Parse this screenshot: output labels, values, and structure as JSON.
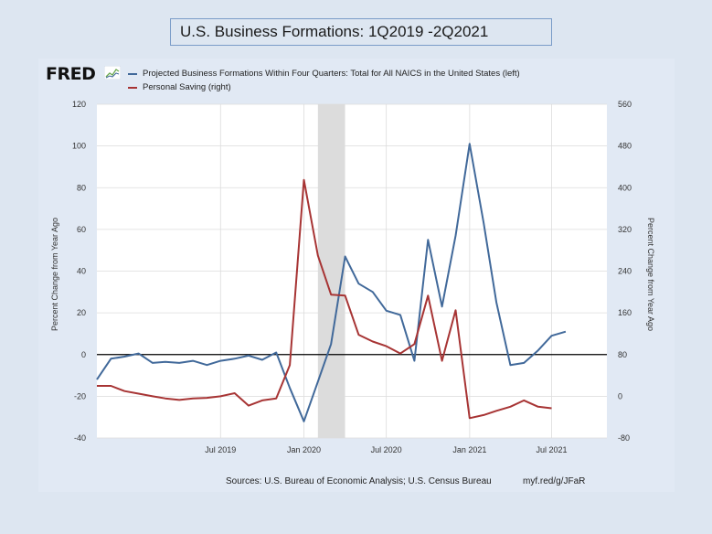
{
  "page_title": "U.S. Business Formations: 1Q2019  -2Q2021",
  "logo_text": "FRED",
  "source_text": "Sources: U.S. Bureau of Economic Analysis; U.S. Census Bureau",
  "url_text": "myf.red/g/JFaR",
  "colors": {
    "series_left": "#41699a",
    "series_right": "#a73434",
    "recession": "#dcdcdc",
    "zero_line": "#000000"
  },
  "chart_data": {
    "type": "line",
    "title": "",
    "ylabel_left": "Percent Change from Year Ago",
    "ylabel_right": "Percent Change from Year Ago",
    "ylim_left": [
      -40,
      120
    ],
    "ylim_right": [
      -80,
      560
    ],
    "yticks_left": [
      "-40",
      "-20",
      "0",
      "20",
      "40",
      "60",
      "80",
      "100",
      "120"
    ],
    "yticks_right": [
      "-80",
      "0",
      "80",
      "160",
      "240",
      "320",
      "400",
      "480",
      "560"
    ],
    "x_range": [
      "2018-10-01",
      "2021-10-31"
    ],
    "x_ticks": [
      {
        "date": "2019-07-01",
        "label": "Jul 2019"
      },
      {
        "date": "2020-01-01",
        "label": "Jan 2020"
      },
      {
        "date": "2020-07-01",
        "label": "Jul 2020"
      },
      {
        "date": "2021-01-01",
        "label": "Jan 2021"
      },
      {
        "date": "2021-07-01",
        "label": "Jul 2021"
      }
    ],
    "recession": [
      "2020-02-01",
      "2020-04-01"
    ],
    "grid": true,
    "legend_position": "top",
    "series": [
      {
        "name": "Projected Business Formations Within Four Quarters: Total for All NAICS in the United States (left)",
        "axis": "left",
        "color": "#41699a",
        "x": [
          "2018-10-01",
          "2018-11-01",
          "2018-12-01",
          "2019-01-01",
          "2019-02-01",
          "2019-03-01",
          "2019-04-01",
          "2019-05-01",
          "2019-06-01",
          "2019-07-01",
          "2019-08-01",
          "2019-09-01",
          "2019-10-01",
          "2019-11-01",
          "2019-12-01",
          "2020-01-01",
          "2020-02-01",
          "2020-03-01",
          "2020-04-01",
          "2020-05-01",
          "2020-06-01",
          "2020-07-01",
          "2020-08-01",
          "2020-09-01",
          "2020-10-01",
          "2020-11-01",
          "2020-12-01",
          "2021-01-01",
          "2021-02-01",
          "2021-03-01",
          "2021-04-01",
          "2021-05-01",
          "2021-06-01",
          "2021-07-01",
          "2021-08-01",
          "2021-09-01",
          "2021-10-01"
        ],
        "values": [
          -12,
          -2,
          -1,
          0.5,
          -4,
          -3.5,
          -4,
          -3,
          -5,
          -3,
          -2,
          -0.5,
          -2.5,
          1,
          -16,
          -32,
          -13,
          5,
          47,
          34,
          30,
          21,
          19,
          -3,
          55,
          23,
          57,
          101,
          63,
          25,
          -5,
          -4,
          2,
          9,
          11,
          null,
          null
        ]
      },
      {
        "name": "Personal Saving (right)",
        "axis": "right",
        "color": "#a73434",
        "x": [
          "2018-10-01",
          "2018-11-01",
          "2018-12-01",
          "2019-01-01",
          "2019-02-01",
          "2019-03-01",
          "2019-04-01",
          "2019-05-01",
          "2019-06-01",
          "2019-07-01",
          "2019-08-01",
          "2019-09-01",
          "2019-10-01",
          "2019-11-01",
          "2019-12-01",
          "2020-01-01",
          "2020-02-01",
          "2020-03-01",
          "2020-04-01",
          "2020-05-01",
          "2020-06-01",
          "2020-07-01",
          "2020-08-01",
          "2020-09-01",
          "2020-10-01",
          "2020-11-01",
          "2020-12-01",
          "2021-01-01",
          "2021-02-01",
          "2021-03-01",
          "2021-04-01",
          "2021-05-01",
          "2021-06-01",
          "2021-07-01",
          "2021-08-01",
          "2021-09-01",
          "2021-10-01"
        ],
        "values": [
          20,
          20,
          10,
          5,
          0,
          -4,
          -7,
          -4,
          -3,
          0,
          6,
          -18,
          -8,
          -4,
          60,
          415,
          270,
          195,
          193,
          118,
          105,
          96,
          82,
          100,
          193,
          68,
          165,
          -42,
          -36,
          -28,
          -20,
          -8,
          -20,
          -23,
          null,
          null,
          null
        ]
      }
    ]
  }
}
